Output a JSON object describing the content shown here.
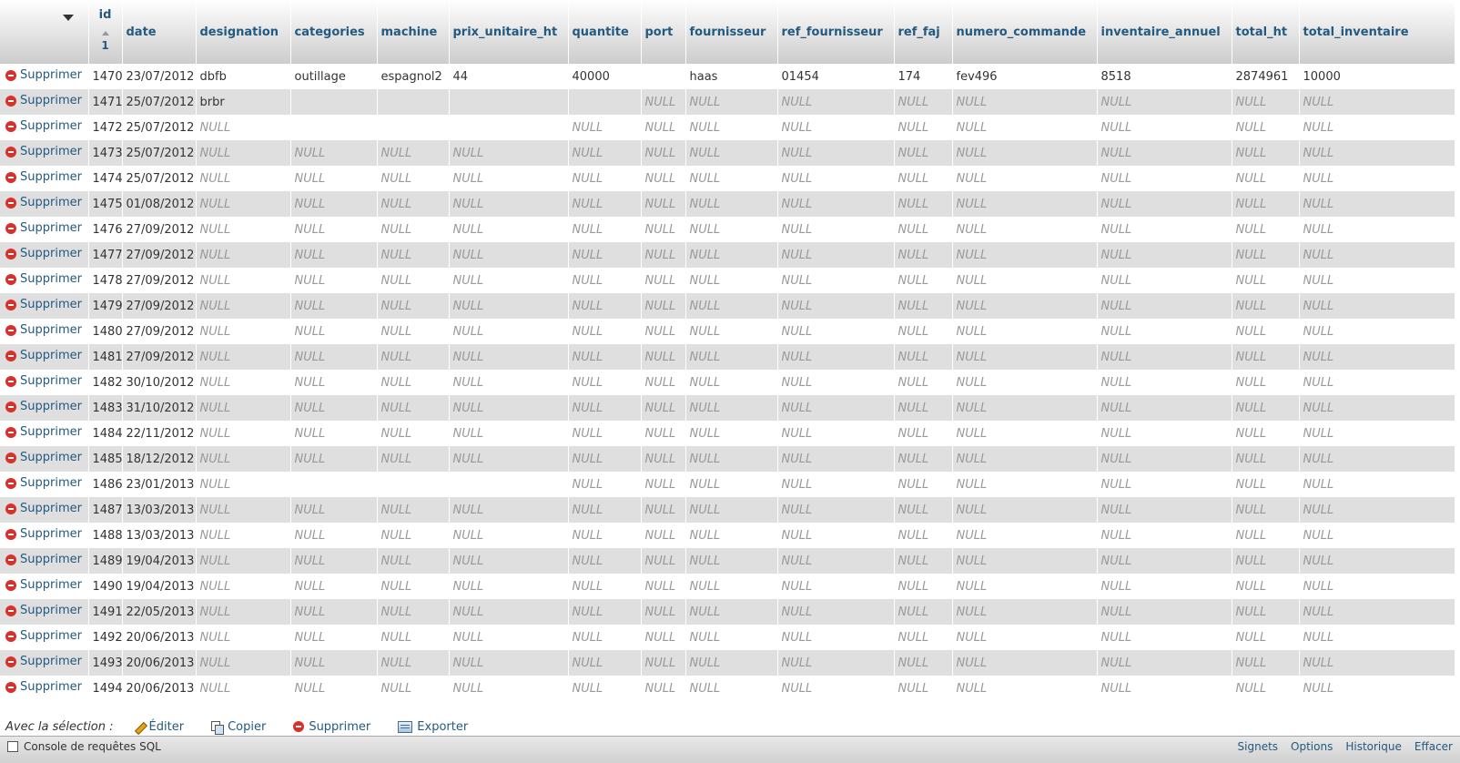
{
  "table": {
    "columns": [
      "id",
      "date",
      "designation",
      "categories",
      "machine",
      "prix_unitaire_ht",
      "quantite",
      "port",
      "fournisseur",
      "ref_fournisseur",
      "ref_faj",
      "numero_commande",
      "inventaire_annuel",
      "total_ht",
      "total_inventaire"
    ],
    "sort_indicator": "1",
    "delete_label": "Supprimer",
    "rows": [
      [
        "1470",
        "23/07/2012",
        "dbfb",
        "outillage",
        "espagnol2",
        "44",
        "40000",
        "",
        "haas",
        "01454",
        "174",
        "fev496",
        "8518",
        "2874961",
        "10000"
      ],
      [
        "1471",
        "25/07/2012",
        "brbr",
        "",
        "",
        "",
        "",
        "NULL",
        "NULL",
        "NULL",
        "NULL",
        "NULL",
        "NULL",
        "NULL",
        "NULL"
      ],
      [
        "1472",
        "25/07/2012",
        "NULL",
        "",
        "",
        "",
        "NULL",
        "NULL",
        "NULL",
        "NULL",
        "NULL",
        "NULL",
        "NULL",
        "NULL",
        "NULL"
      ],
      [
        "1473",
        "25/07/2012",
        "NULL",
        "NULL",
        "NULL",
        "NULL",
        "NULL",
        "NULL",
        "NULL",
        "NULL",
        "NULL",
        "NULL",
        "NULL",
        "NULL",
        "NULL"
      ],
      [
        "1474",
        "25/07/2012",
        "NULL",
        "NULL",
        "NULL",
        "NULL",
        "NULL",
        "NULL",
        "NULL",
        "NULL",
        "NULL",
        "NULL",
        "NULL",
        "NULL",
        "NULL"
      ],
      [
        "1475",
        "01/08/2012",
        "NULL",
        "NULL",
        "NULL",
        "NULL",
        "NULL",
        "NULL",
        "NULL",
        "NULL",
        "NULL",
        "NULL",
        "NULL",
        "NULL",
        "NULL"
      ],
      [
        "1476",
        "27/09/2012",
        "NULL",
        "NULL",
        "NULL",
        "NULL",
        "NULL",
        "NULL",
        "NULL",
        "NULL",
        "NULL",
        "NULL",
        "NULL",
        "NULL",
        "NULL"
      ],
      [
        "1477",
        "27/09/2012",
        "NULL",
        "NULL",
        "NULL",
        "NULL",
        "NULL",
        "NULL",
        "NULL",
        "NULL",
        "NULL",
        "NULL",
        "NULL",
        "NULL",
        "NULL"
      ],
      [
        "1478",
        "27/09/2012",
        "NULL",
        "NULL",
        "NULL",
        "NULL",
        "NULL",
        "NULL",
        "NULL",
        "NULL",
        "NULL",
        "NULL",
        "NULL",
        "NULL",
        "NULL"
      ],
      [
        "1479",
        "27/09/2012",
        "NULL",
        "NULL",
        "NULL",
        "NULL",
        "NULL",
        "NULL",
        "NULL",
        "NULL",
        "NULL",
        "NULL",
        "NULL",
        "NULL",
        "NULL"
      ],
      [
        "1480",
        "27/09/2012",
        "NULL",
        "NULL",
        "NULL",
        "NULL",
        "NULL",
        "NULL",
        "NULL",
        "NULL",
        "NULL",
        "NULL",
        "NULL",
        "NULL",
        "NULL"
      ],
      [
        "1481",
        "27/09/2012",
        "NULL",
        "NULL",
        "NULL",
        "NULL",
        "NULL",
        "NULL",
        "NULL",
        "NULL",
        "NULL",
        "NULL",
        "NULL",
        "NULL",
        "NULL"
      ],
      [
        "1482",
        "30/10/2012",
        "NULL",
        "NULL",
        "NULL",
        "NULL",
        "NULL",
        "NULL",
        "NULL",
        "NULL",
        "NULL",
        "NULL",
        "NULL",
        "NULL",
        "NULL"
      ],
      [
        "1483",
        "31/10/2012",
        "NULL",
        "NULL",
        "NULL",
        "NULL",
        "NULL",
        "NULL",
        "NULL",
        "NULL",
        "NULL",
        "NULL",
        "NULL",
        "NULL",
        "NULL"
      ],
      [
        "1484",
        "22/11/2012",
        "NULL",
        "NULL",
        "NULL",
        "NULL",
        "NULL",
        "NULL",
        "NULL",
        "NULL",
        "NULL",
        "NULL",
        "NULL",
        "NULL",
        "NULL"
      ],
      [
        "1485",
        "18/12/2012",
        "NULL",
        "NULL",
        "NULL",
        "NULL",
        "NULL",
        "NULL",
        "NULL",
        "NULL",
        "NULL",
        "NULL",
        "NULL",
        "NULL",
        "NULL"
      ],
      [
        "1486",
        "23/01/2013",
        "NULL",
        "",
        "",
        "",
        "NULL",
        "NULL",
        "NULL",
        "NULL",
        "NULL",
        "NULL",
        "NULL",
        "NULL",
        "NULL"
      ],
      [
        "1487",
        "13/03/2013",
        "NULL",
        "NULL",
        "NULL",
        "NULL",
        "NULL",
        "NULL",
        "NULL",
        "NULL",
        "NULL",
        "NULL",
        "NULL",
        "NULL",
        "NULL"
      ],
      [
        "1488",
        "13/03/2013",
        "NULL",
        "NULL",
        "NULL",
        "NULL",
        "NULL",
        "NULL",
        "NULL",
        "NULL",
        "NULL",
        "NULL",
        "NULL",
        "NULL",
        "NULL"
      ],
      [
        "1489",
        "19/04/2013",
        "NULL",
        "NULL",
        "NULL",
        "NULL",
        "NULL",
        "NULL",
        "NULL",
        "NULL",
        "NULL",
        "NULL",
        "NULL",
        "NULL",
        "NULL"
      ],
      [
        "1490",
        "19/04/2013",
        "NULL",
        "NULL",
        "NULL",
        "NULL",
        "NULL",
        "NULL",
        "NULL",
        "NULL",
        "NULL",
        "NULL",
        "NULL",
        "NULL",
        "NULL"
      ],
      [
        "1491",
        "22/05/2013",
        "NULL",
        "NULL",
        "NULL",
        "NULL",
        "NULL",
        "NULL",
        "NULL",
        "NULL",
        "NULL",
        "NULL",
        "NULL",
        "NULL",
        "NULL"
      ],
      [
        "1492",
        "20/06/2013",
        "NULL",
        "NULL",
        "NULL",
        "NULL",
        "NULL",
        "NULL",
        "NULL",
        "NULL",
        "NULL",
        "NULL",
        "NULL",
        "NULL",
        "NULL"
      ],
      [
        "1493",
        "20/06/2013",
        "NULL",
        "NULL",
        "NULL",
        "NULL",
        "NULL",
        "NULL",
        "NULL",
        "NULL",
        "NULL",
        "NULL",
        "NULL",
        "NULL",
        "NULL"
      ],
      [
        "1494",
        "20/06/2013",
        "NULL",
        "NULL",
        "NULL",
        "NULL",
        "NULL",
        "NULL",
        "NULL",
        "NULL",
        "NULL",
        "NULL",
        "NULL",
        "NULL",
        "NULL"
      ]
    ]
  },
  "selection": {
    "label": "Avec la sélection :",
    "edit": "Éditer",
    "copy": "Copier",
    "delete": "Supprimer",
    "export": "Exporter"
  },
  "console": {
    "title": "Console de requêtes SQL",
    "links": [
      "Signets",
      "Options",
      "Historique",
      "Effacer"
    ]
  },
  "colors": {
    "link": "#235a81",
    "row_alt": "#dfdfdf",
    "delete_icon": "#d9302a"
  }
}
